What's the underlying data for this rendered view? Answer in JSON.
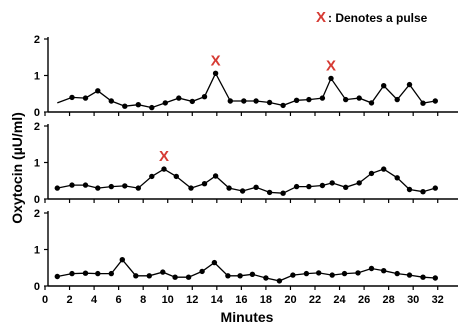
{
  "chart_data": {
    "type": "line",
    "xlabel": "Minutes",
    "ylabel": "Oxytocin (µU/ml)",
    "xlim": [
      0,
      33
    ],
    "x_ticks": [
      0,
      2,
      4,
      6,
      8,
      10,
      12,
      14,
      16,
      18,
      20,
      22,
      24,
      26,
      28,
      30,
      32
    ],
    "legend": {
      "marker": "X",
      "text": ": Denotes a pulse",
      "placement": "top-right",
      "marker_color": "#d63a33"
    },
    "panels": [
      {
        "ylim": [
          0,
          2
        ],
        "y_ticks": [
          0,
          1,
          2
        ],
        "points": [
          [
            1.0,
            0.25
          ],
          [
            2.2,
            0.4
          ],
          [
            3.3,
            0.38
          ],
          [
            4.3,
            0.58
          ],
          [
            5.4,
            0.3
          ],
          [
            6.5,
            0.16
          ],
          [
            7.6,
            0.2
          ],
          [
            8.7,
            0.12
          ],
          [
            9.8,
            0.25
          ],
          [
            10.9,
            0.38
          ],
          [
            12.0,
            0.29
          ],
          [
            13.0,
            0.42
          ],
          [
            13.9,
            1.06
          ],
          [
            15.1,
            0.3
          ],
          [
            16.2,
            0.3
          ],
          [
            17.2,
            0.3
          ],
          [
            18.3,
            0.26
          ],
          [
            19.4,
            0.18
          ],
          [
            20.5,
            0.32
          ],
          [
            21.5,
            0.34
          ],
          [
            22.6,
            0.38
          ],
          [
            23.3,
            0.92
          ],
          [
            24.5,
            0.34
          ],
          [
            25.6,
            0.38
          ],
          [
            26.6,
            0.25
          ],
          [
            27.6,
            0.72
          ],
          [
            28.7,
            0.34
          ],
          [
            29.7,
            0.75
          ],
          [
            30.8,
            0.24
          ],
          [
            31.8,
            0.3
          ]
        ],
        "first_point_marker": false,
        "pulses": [
          {
            "x": 13.9,
            "y": 1.06,
            "label": "X"
          },
          {
            "x": 23.3,
            "y": 0.92,
            "label": "X"
          }
        ]
      },
      {
        "ylim": [
          0,
          2
        ],
        "y_ticks": [
          0,
          1,
          2
        ],
        "points": [
          [
            1.0,
            0.3
          ],
          [
            2.2,
            0.38
          ],
          [
            3.3,
            0.38
          ],
          [
            4.3,
            0.3
          ],
          [
            5.4,
            0.34
          ],
          [
            6.5,
            0.36
          ],
          [
            7.6,
            0.3
          ],
          [
            8.7,
            0.62
          ],
          [
            9.7,
            0.82
          ],
          [
            10.7,
            0.62
          ],
          [
            11.9,
            0.3
          ],
          [
            13.0,
            0.42
          ],
          [
            13.9,
            0.63
          ],
          [
            15.0,
            0.3
          ],
          [
            16.1,
            0.22
          ],
          [
            17.2,
            0.32
          ],
          [
            18.3,
            0.18
          ],
          [
            19.4,
            0.16
          ],
          [
            20.5,
            0.34
          ],
          [
            21.5,
            0.34
          ],
          [
            22.6,
            0.37
          ],
          [
            23.4,
            0.44
          ],
          [
            24.5,
            0.32
          ],
          [
            25.6,
            0.44
          ],
          [
            26.6,
            0.7
          ],
          [
            27.6,
            0.82
          ],
          [
            28.7,
            0.58
          ],
          [
            29.7,
            0.26
          ],
          [
            30.8,
            0.2
          ],
          [
            31.8,
            0.3
          ]
        ],
        "first_point_marker": true,
        "pulses": [
          {
            "x": 9.7,
            "y": 0.82,
            "label": "X"
          }
        ]
      },
      {
        "ylim": [
          0,
          2
        ],
        "y_ticks": [
          0,
          1,
          2
        ],
        "points": [
          [
            1.0,
            0.26
          ],
          [
            2.2,
            0.34
          ],
          [
            3.3,
            0.35
          ],
          [
            4.3,
            0.34
          ],
          [
            5.4,
            0.34
          ],
          [
            6.3,
            0.72
          ],
          [
            7.4,
            0.28
          ],
          [
            8.5,
            0.28
          ],
          [
            9.6,
            0.38
          ],
          [
            10.6,
            0.24
          ],
          [
            11.7,
            0.24
          ],
          [
            12.8,
            0.4
          ],
          [
            13.8,
            0.64
          ],
          [
            14.9,
            0.28
          ],
          [
            15.9,
            0.28
          ],
          [
            16.9,
            0.32
          ],
          [
            18.0,
            0.22
          ],
          [
            19.1,
            0.14
          ],
          [
            20.2,
            0.3
          ],
          [
            21.3,
            0.34
          ],
          [
            22.3,
            0.36
          ],
          [
            23.4,
            0.3
          ],
          [
            24.4,
            0.34
          ],
          [
            25.5,
            0.36
          ],
          [
            26.6,
            0.48
          ],
          [
            27.6,
            0.42
          ],
          [
            28.7,
            0.34
          ],
          [
            29.7,
            0.3
          ],
          [
            30.8,
            0.24
          ],
          [
            31.8,
            0.22
          ]
        ],
        "first_point_marker": true,
        "pulses": []
      }
    ]
  }
}
